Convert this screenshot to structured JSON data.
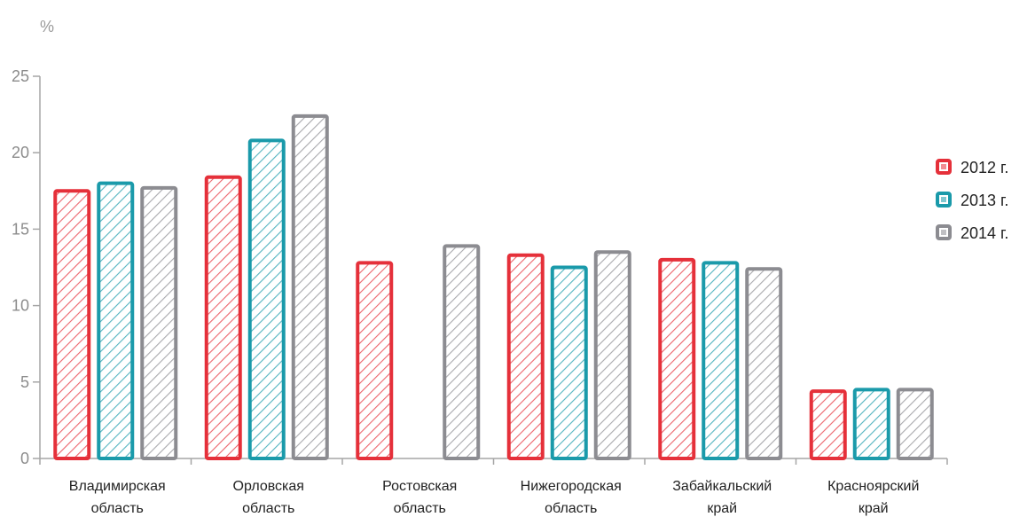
{
  "chart_data": {
    "type": "bar",
    "ylabel": "%",
    "ylim": [
      0,
      25
    ],
    "yticks": [
      "0",
      "5",
      "10",
      "15",
      "20",
      "25"
    ],
    "categories": [
      [
        "Владимирская",
        "область"
      ],
      [
        "Орловская",
        "область"
      ],
      [
        "Ростовская",
        "область"
      ],
      [
        "Нижегородская",
        "область"
      ],
      [
        "Забайкальский",
        "край"
      ],
      [
        "Красноярский",
        "край"
      ]
    ],
    "series": [
      {
        "name": "2012 г.",
        "color": "#e5303a",
        "values": [
          17.5,
          18.4,
          12.8,
          13.3,
          13.0,
          4.4
        ]
      },
      {
        "name": "2013 г.",
        "color": "#1a9aaa",
        "values": [
          18.0,
          20.8,
          null,
          12.5,
          12.8,
          4.5
        ]
      },
      {
        "name": "2014 г.",
        "color": "#8c8c91",
        "values": [
          17.7,
          22.4,
          13.9,
          13.5,
          12.4,
          4.5
        ]
      }
    ],
    "legend_position": "right",
    "grid": false
  }
}
